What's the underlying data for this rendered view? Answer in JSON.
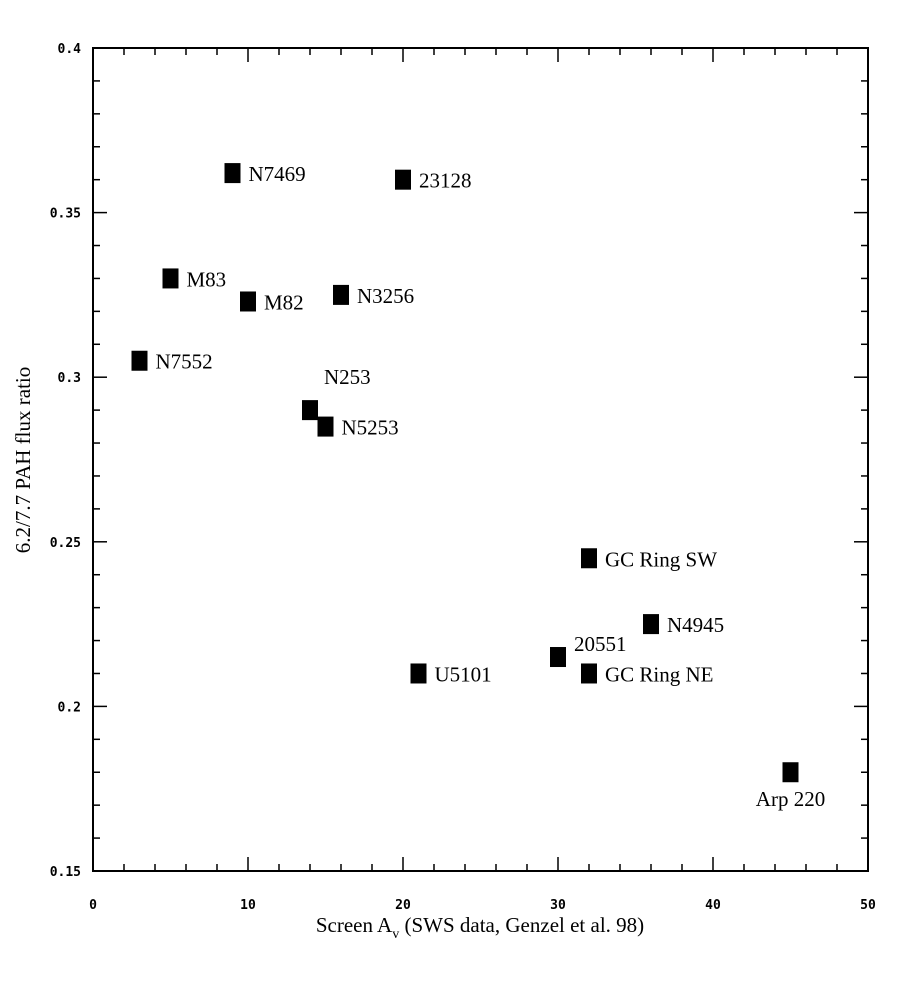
{
  "chart_data": {
    "type": "scatter",
    "title": "",
    "xlabel": {
      "pre": "Screen A",
      "sub": "v",
      "post": " (SWS data, Genzel et al. 98)"
    },
    "ylabel": "6.2/7.7 PAH flux ratio",
    "xlim": [
      0,
      50
    ],
    "ylim": [
      0.15,
      0.4
    ],
    "x_tick_labels": [
      "0",
      "10",
      "20",
      "30",
      "40",
      "50"
    ],
    "y_tick_labels": [
      "0.15",
      "0.2",
      "0.25",
      "0.3",
      "0.35",
      "0.4"
    ],
    "x_tick_values": [
      0,
      10,
      20,
      30,
      40,
      50
    ],
    "y_tick_values": [
      0.15,
      0.2,
      0.25,
      0.3,
      0.35,
      0.4
    ],
    "grid": false,
    "marker": "filled-square",
    "marker_color": "#000000",
    "points": [
      {
        "label": "N7469",
        "x": 9,
        "y": 0.362
      },
      {
        "label": "23128",
        "x": 20,
        "y": 0.36
      },
      {
        "label": "M83",
        "x": 5,
        "y": 0.33
      },
      {
        "label": "M82",
        "x": 10,
        "y": 0.323
      },
      {
        "label": "N3256",
        "x": 16,
        "y": 0.325
      },
      {
        "label": "N7552",
        "x": 3,
        "y": 0.305
      },
      {
        "label": "N253",
        "x": 14,
        "y": 0.29
      },
      {
        "label": "N5253",
        "x": 15,
        "y": 0.285
      },
      {
        "label": "GC Ring SW",
        "x": 32,
        "y": 0.245
      },
      {
        "label": "N4945",
        "x": 36,
        "y": 0.225
      },
      {
        "label": "20551",
        "x": 30,
        "y": 0.215
      },
      {
        "label": "GC Ring NE",
        "x": 32,
        "y": 0.21
      },
      {
        "label": "U5101",
        "x": 21,
        "y": 0.21
      },
      {
        "label": "Arp 220",
        "x": 45,
        "y": 0.18
      }
    ]
  }
}
